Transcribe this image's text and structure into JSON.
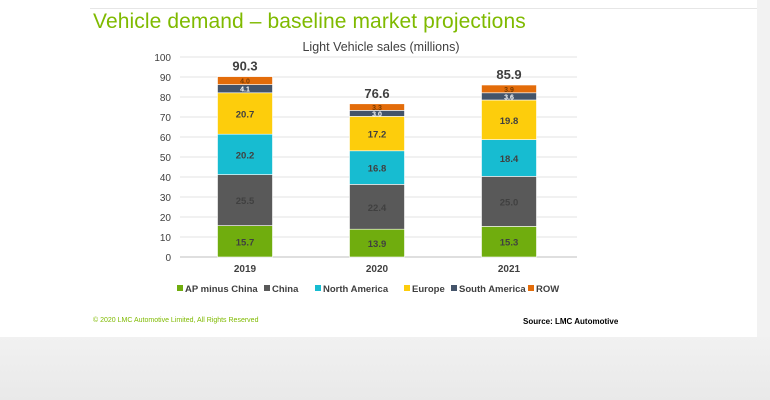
{
  "slide": {
    "title": "Vehicle demand – baseline market projections",
    "copyright": "© 2020 LMC Automotive Limited, All Rights Reserved",
    "source": "Source: LMC Automotive"
  },
  "chart_data": {
    "type": "bar",
    "stacked": true,
    "title": "Light Vehicle sales (millions)",
    "xlabel": "",
    "ylabel": "",
    "ylim": [
      0,
      100
    ],
    "yticks": [
      0,
      10,
      20,
      30,
      40,
      50,
      60,
      70,
      80,
      90,
      100
    ],
    "grid": true,
    "legend_position": "bottom",
    "categories": [
      "2019",
      "2020",
      "2021"
    ],
    "totals": [
      "90.3",
      "76.6",
      "85.9"
    ],
    "series": [
      {
        "name": "AP minus China",
        "color": "#70ad0e",
        "values": [
          15.7,
          13.9,
          15.3
        ]
      },
      {
        "name": "China",
        "color": "#595959",
        "values": [
          25.5,
          22.4,
          25.0
        ]
      },
      {
        "name": "North America",
        "color": "#17bcd1",
        "values": [
          20.2,
          16.8,
          18.4
        ]
      },
      {
        "name": "Europe",
        "color": "#fdcd0c",
        "values": [
          20.7,
          17.2,
          19.8
        ]
      },
      {
        "name": "South America",
        "color": "#44546a",
        "values": [
          4.1,
          3.0,
          3.6
        ]
      },
      {
        "name": "ROW",
        "color": "#e36c0a",
        "values": [
          4.0,
          3.3,
          3.9
        ]
      }
    ]
  }
}
